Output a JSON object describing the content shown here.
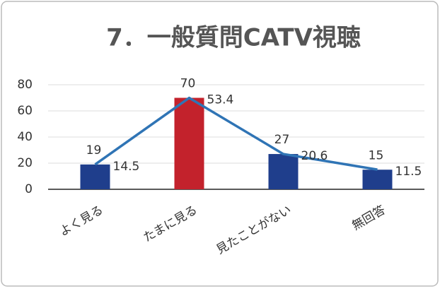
{
  "chart_data": {
    "type": "bar",
    "title": "7．一般質問CATV視聴",
    "categories": [
      "よく見る",
      "たまに見る",
      "見たことがない",
      "無回答"
    ],
    "series": [
      {
        "values": [
          19,
          70,
          27,
          15
        ],
        "colors": [
          "#1f3e8c",
          "#c3222c",
          "#1f3e8c",
          "#1f3e8c"
        ]
      },
      {
        "type": "line",
        "axis": "y2",
        "color": "#2f74b5",
        "values": [
          14.5,
          53.4,
          20.6,
          11.5
        ]
      }
    ],
    "ylim": [
      0,
      80
    ],
    "yticks": [
      0,
      20,
      40,
      60,
      80
    ],
    "y2lim": [
      0,
      61.07
    ],
    "grid": true
  }
}
